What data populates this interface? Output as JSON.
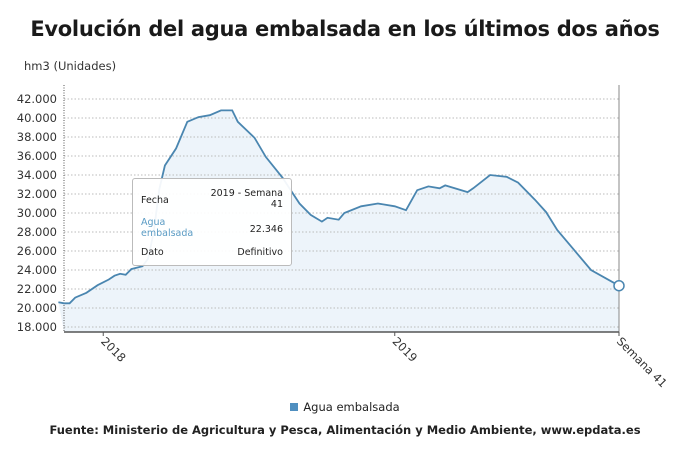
{
  "title": "Evolución del agua embalsada en los últimos dos años",
  "unit_label": "hm3 (Unidades)",
  "source": "Fuente: Ministerio de Agricultura y Pesca, Alimentación y Medio Ambiente, www.epdata.es",
  "tooltip": {
    "fecha_label": "Fecha",
    "fecha_value_1": "2019 - Semana",
    "fecha_value_2": "41",
    "serie_label_1": "Agua",
    "serie_label_2": "embalsada",
    "serie_value": "22.346",
    "dato_label": "Dato",
    "dato_value": "Definitivo"
  },
  "chart_data": {
    "type": "area",
    "title": "Evolución del agua embalsada en los últimos dos años",
    "ylabel": "hm3 (Unidades)",
    "ylim": [
      18000,
      42000
    ],
    "yticks": [
      "18.000",
      "20.000",
      "22.000",
      "24.000",
      "26.000",
      "28.000",
      "30.000",
      "32.000",
      "34.000",
      "36.000",
      "38.000",
      "40.000",
      "42.000"
    ],
    "xticks": [
      {
        "x": "2018-S1",
        "label": "2018"
      },
      {
        "x": "2019-S1",
        "label": "2019"
      },
      {
        "x": "2019-S41",
        "label": "Semana 41"
      }
    ],
    "grid": true,
    "legend": "bottom",
    "color": "#4a86b0",
    "series": [
      {
        "name": "Agua embalsada",
        "points": [
          [
            "2017-S45",
            20600
          ],
          [
            "2017-S46",
            20500
          ],
          [
            "2017-S47",
            20500
          ],
          [
            "2017-S48",
            21100
          ],
          [
            "2017-S50",
            21600
          ],
          [
            "2017-S52",
            22400
          ],
          [
            "2018-S2",
            23000
          ],
          [
            "2018-S3",
            23400
          ],
          [
            "2018-S4",
            23600
          ],
          [
            "2018-S5",
            23500
          ],
          [
            "2018-S6",
            24100
          ],
          [
            "2018-S8",
            24400
          ],
          [
            "2018-S9",
            25200
          ],
          [
            "2018-S10",
            28000
          ],
          [
            "2018-S11",
            32500
          ],
          [
            "2018-S12",
            35000
          ],
          [
            "2018-S14",
            36800
          ],
          [
            "2018-S16",
            39600
          ],
          [
            "2018-S18",
            40100
          ],
          [
            "2018-S20",
            40300
          ],
          [
            "2018-S22",
            40800
          ],
          [
            "2018-S24",
            40800
          ],
          [
            "2018-S25",
            39600
          ],
          [
            "2018-S28",
            37900
          ],
          [
            "2018-S30",
            35900
          ],
          [
            "2018-S33",
            33700
          ],
          [
            "2018-S35",
            31900
          ],
          [
            "2018-S36",
            31000
          ],
          [
            "2018-S38",
            29800
          ],
          [
            "2018-S40",
            29100
          ],
          [
            "2018-S41",
            29500
          ],
          [
            "2018-S43",
            29300
          ],
          [
            "2018-S44",
            30000
          ],
          [
            "2018-S47",
            30700
          ],
          [
            "2018-S50",
            31000
          ],
          [
            "2019-S1",
            30700
          ],
          [
            "2019-S3",
            30300
          ],
          [
            "2019-S5",
            32400
          ],
          [
            "2019-S7",
            32800
          ],
          [
            "2019-S9",
            32600
          ],
          [
            "2019-S10",
            32900
          ],
          [
            "2019-S14",
            32200
          ],
          [
            "2019-S15",
            32600
          ],
          [
            "2019-S18",
            34000
          ],
          [
            "2019-S21",
            33800
          ],
          [
            "2019-S23",
            33200
          ],
          [
            "2019-S26",
            31400
          ],
          [
            "2019-S28",
            30100
          ],
          [
            "2019-S30",
            28200
          ],
          [
            "2019-S33",
            26100
          ],
          [
            "2019-S36",
            24000
          ],
          [
            "2019-S41",
            22346
          ]
        ]
      }
    ]
  }
}
